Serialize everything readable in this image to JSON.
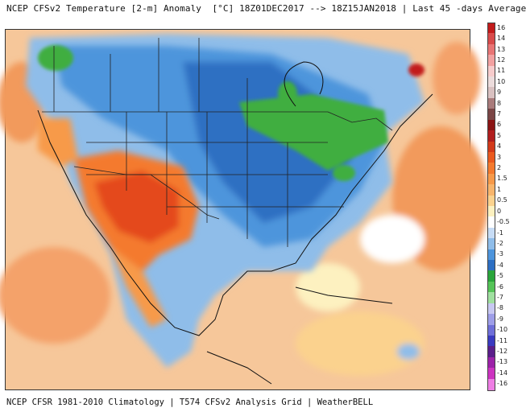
{
  "title": "NCEP CFSv2 Temperature [2-m] Anomaly  [°C] 18Z01DEC2017 --> 18Z15JAN2018 | Last 45 -days Average",
  "footer": "NCEP CFSR 1981-2010 Climatology | T574 CFSv2 Analysis Grid | WeatherBELL",
  "legend": {
    "labels": [
      "16",
      "14",
      "13",
      "12",
      "11",
      "10",
      "9",
      "8",
      "7",
      "6",
      "5",
      "4",
      "3",
      "2",
      "1.5",
      "1",
      "0.5",
      "0",
      "-0.5",
      "-1",
      "-2",
      "-3",
      "-4",
      "-5",
      "-6",
      "-7",
      "-8",
      "-9",
      "-10",
      "-11",
      "-12",
      "-13",
      "-14",
      "-16"
    ],
    "colors": [
      "#c21b1b",
      "#d84b4b",
      "#e87575",
      "#f2a1a1",
      "#f7cccc",
      "#ecdcdc",
      "#d9c1c1",
      "#a97b7b",
      "#7a4545",
      "#8a1414",
      "#b01e1e",
      "#d23a1a",
      "#ea5a1f",
      "#f47a2e",
      "#f79a4a",
      "#f8b56c",
      "#fbd28e",
      "#fdf1c0",
      "#ffffff",
      "#c7dcf5",
      "#8fbde9",
      "#4e95dc",
      "#2d6fc2",
      "#2aa53b",
      "#55c458",
      "#a0e0a0",
      "#c8c8f2",
      "#9e9ee8",
      "#6f6fd8",
      "#3a3ac0",
      "#5a1e8a",
      "#9c22a8",
      "#cc33c0",
      "#ee7ee4"
    ]
  },
  "colors": {
    "warm_ocean": "#f6c79a",
    "warm_core": "#e44a1f",
    "cold_core": "#2d6fc2",
    "cold_light": "#8fbde9",
    "green_zone": "#3fae3f",
    "near_zero": "#fdf1c0",
    "border_line": "#222222"
  }
}
